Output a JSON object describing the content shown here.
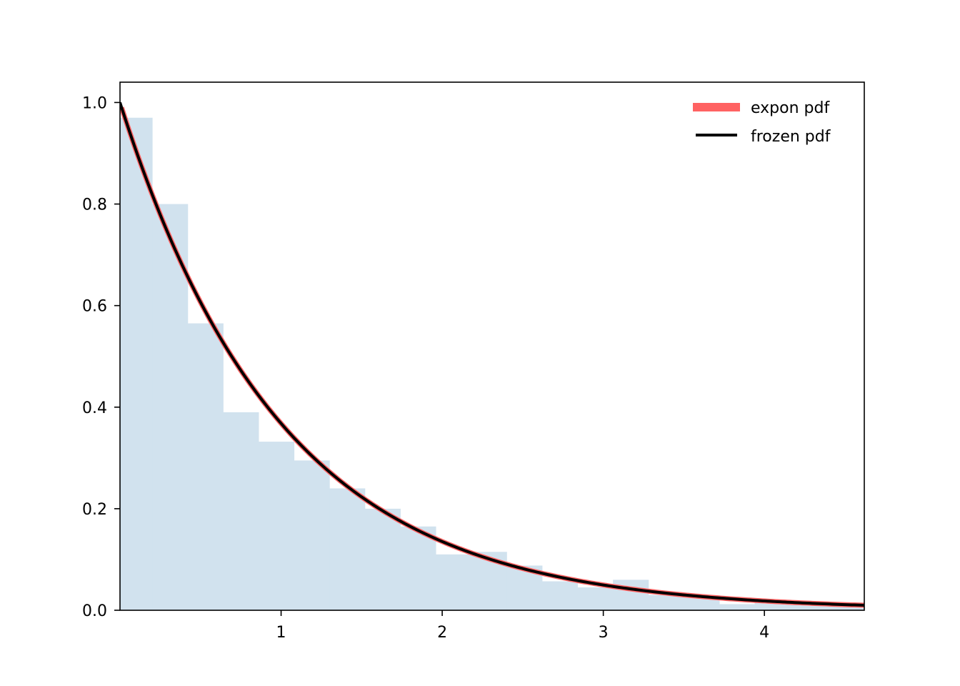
{
  "chart_data": {
    "type": "line",
    "title": "",
    "xlabel": "",
    "ylabel": "",
    "xlim": [
      0.0,
      4.62
    ],
    "ylim": [
      0.0,
      1.04
    ],
    "xticks": [
      1,
      2,
      3,
      4
    ],
    "yticks": [
      0.0,
      0.2,
      0.4,
      0.6,
      0.8,
      1.0
    ],
    "xtick_labels": [
      "1",
      "2",
      "3",
      "4"
    ],
    "ytick_labels": [
      "0.0",
      "0.2",
      "0.4",
      "0.6",
      "0.8",
      "1.0"
    ],
    "grid": false,
    "legend_position": "upper right",
    "histogram": {
      "color": "#d1e2ee",
      "bin_edges": [
        0.0,
        0.2,
        0.42,
        0.64,
        0.86,
        1.08,
        1.3,
        1.52,
        1.74,
        1.96,
        2.18,
        2.4,
        2.62,
        2.84,
        3.06,
        3.28,
        3.5,
        3.72,
        3.94,
        4.16,
        4.38,
        4.62
      ],
      "densities": [
        0.97,
        0.8,
        0.565,
        0.39,
        0.332,
        0.295,
        0.24,
        0.2,
        0.165,
        0.11,
        0.115,
        0.088,
        0.057,
        0.045,
        0.06,
        0.03,
        0.025,
        0.012,
        0.018,
        0.012,
        0.01
      ]
    },
    "series": [
      {
        "name": "expon pdf",
        "function": "exp(-x)",
        "x_range": [
          0.01,
          4.62
        ],
        "color": "#ff6262",
        "style": "thick"
      },
      {
        "name": "frozen pdf",
        "function": "exp(-x)",
        "x_range": [
          0.0,
          4.62
        ],
        "color": "#000000",
        "style": "thin"
      }
    ]
  }
}
